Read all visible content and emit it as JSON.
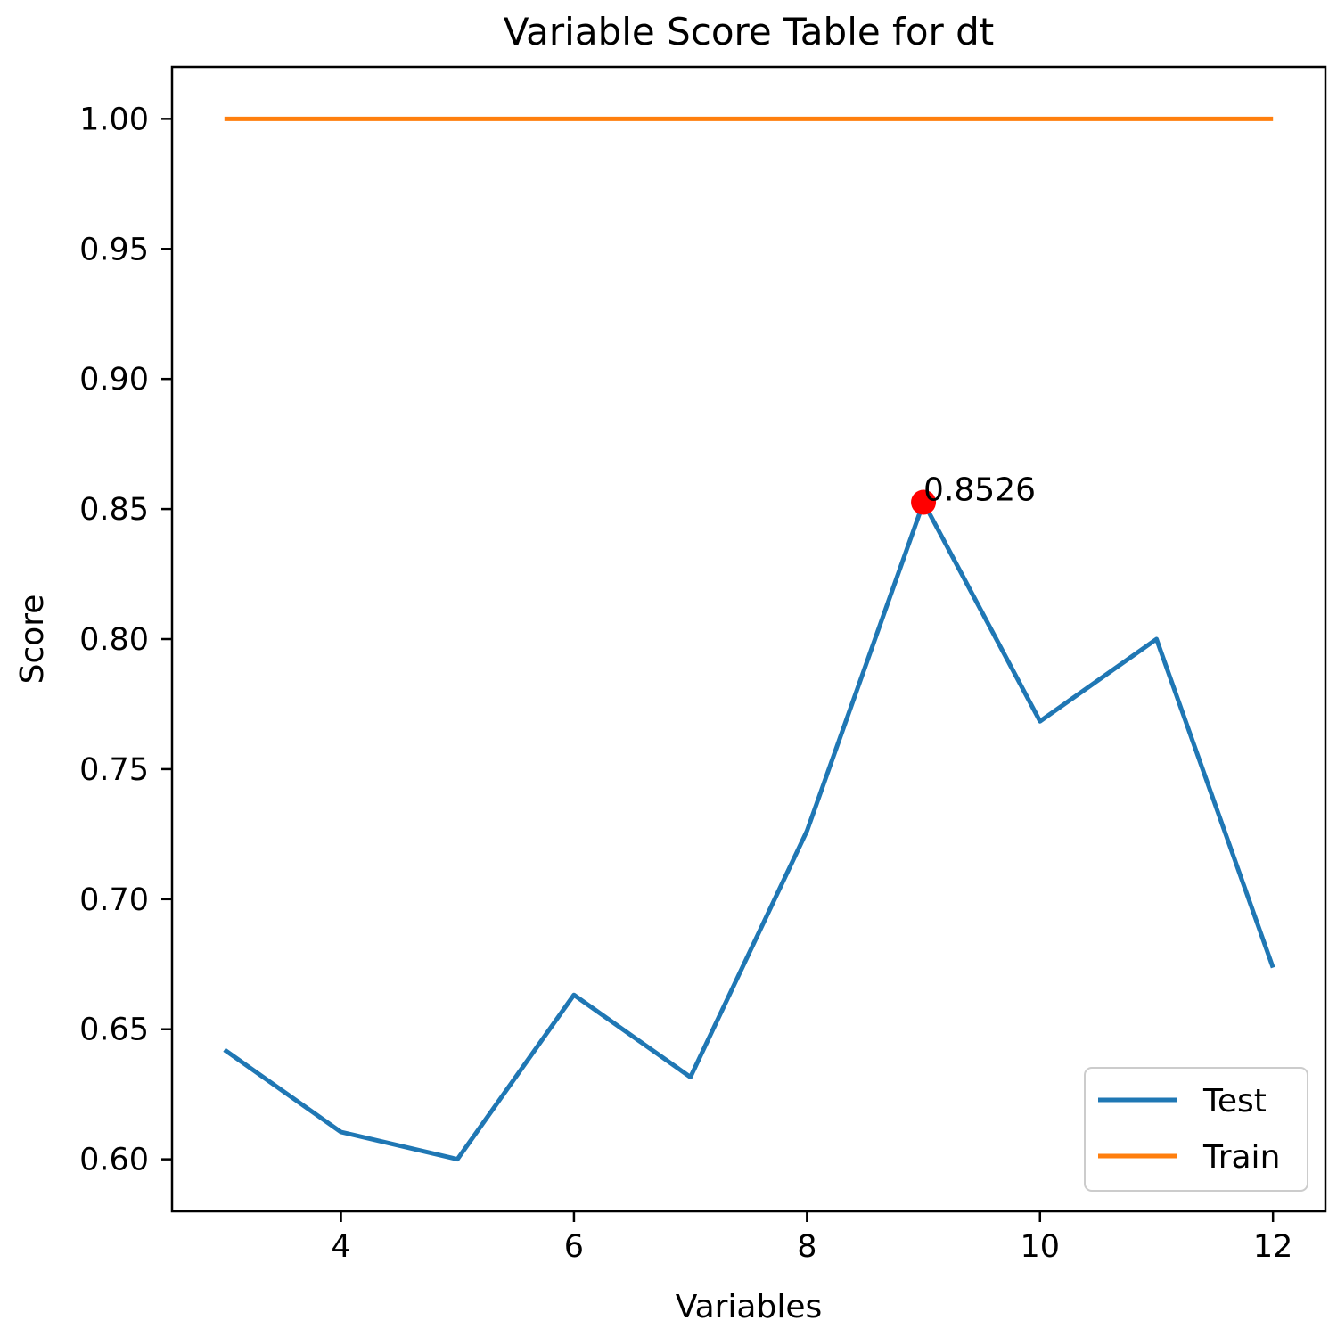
{
  "chart_data": {
    "type": "line",
    "title": "Variable Score Table for dt",
    "xlabel": "Variables",
    "ylabel": "Score",
    "xlim": [
      2.55,
      12.45
    ],
    "ylim": [
      0.58,
      1.02
    ],
    "xticks": [
      4,
      6,
      8,
      10,
      12
    ],
    "xtick_labels": [
      "4",
      "6",
      "8",
      "10",
      "12"
    ],
    "yticks": [
      0.6,
      0.65,
      0.7,
      0.75,
      0.8,
      0.85,
      0.9,
      0.95,
      1.0
    ],
    "ytick_labels": [
      "0.60",
      "0.65",
      "0.70",
      "0.75",
      "0.80",
      "0.85",
      "0.90",
      "0.95",
      "1.00"
    ],
    "grid": false,
    "legend_position": "lower-right",
    "x": [
      3,
      4,
      5,
      6,
      7,
      8,
      9,
      10,
      11,
      12
    ],
    "series": [
      {
        "name": "Test",
        "color": "#1f77b4",
        "values": [
          0.6421,
          0.6105,
          0.6,
          0.6632,
          0.6316,
          0.7263,
          0.8526,
          0.7684,
          0.8,
          0.6737
        ]
      },
      {
        "name": "Train",
        "color": "#ff7f0e",
        "values": [
          1.0,
          1.0,
          1.0,
          1.0,
          1.0,
          1.0,
          1.0,
          1.0,
          1.0,
          1.0
        ]
      }
    ],
    "highlight": {
      "x": 9,
      "y": 0.8526,
      "label": "0.8526",
      "color": "#ff0000"
    }
  }
}
